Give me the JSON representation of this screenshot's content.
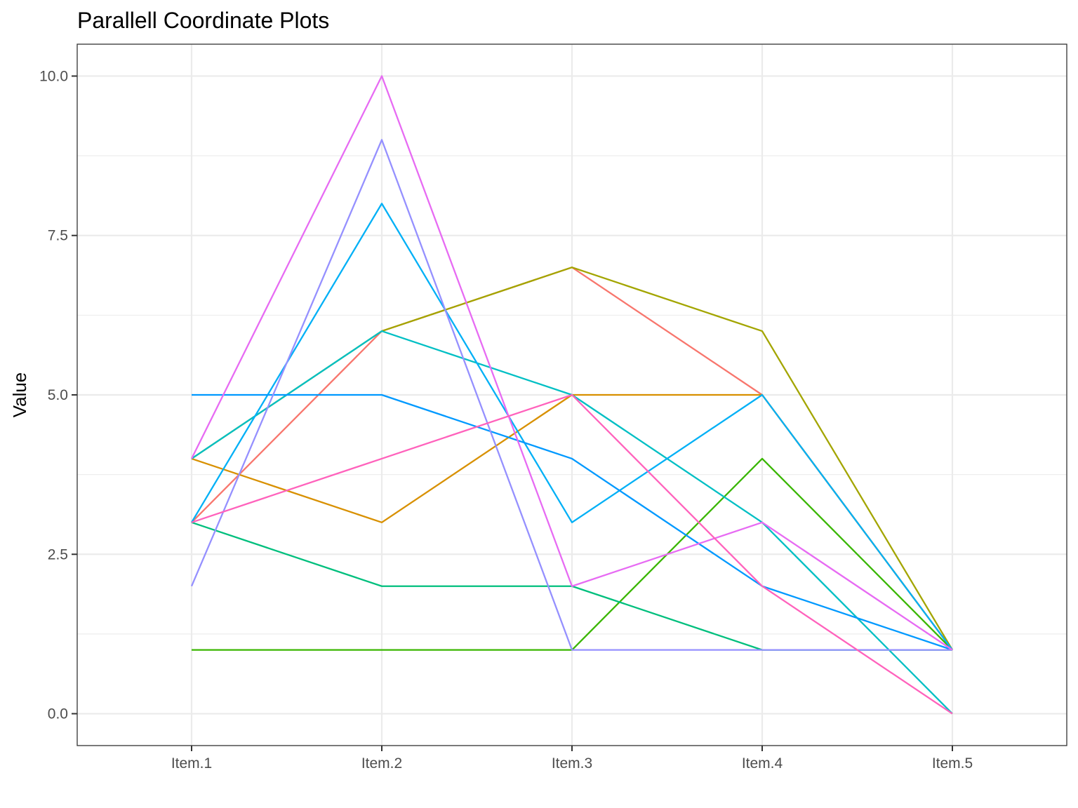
{
  "chart_data": {
    "type": "line",
    "title": "Parallell Coordinate Plots",
    "xlabel": "",
    "ylabel": "Value",
    "categories": [
      "Item.1",
      "Item.2",
      "Item.3",
      "Item.4",
      "Item.5"
    ],
    "ylim": [
      -0.5,
      10.5
    ],
    "y_major_ticks": [
      0,
      2.5,
      5,
      7.5,
      10
    ],
    "y_tick_labels": [
      "0.0",
      "2.5",
      "5.0",
      "7.5",
      "10.0"
    ],
    "y_minor_ticks": [
      1.25,
      3.75,
      6.25,
      8.75
    ],
    "grid": true,
    "legend": "none",
    "series": [
      {
        "color": "#F8766D",
        "values": [
          3,
          6,
          7,
          5,
          1
        ]
      },
      {
        "color": "#D89000",
        "values": [
          4,
          3,
          5,
          5,
          1
        ]
      },
      {
        "color": "#A3A500",
        "values": [
          4,
          6,
          7,
          6,
          1
        ]
      },
      {
        "color": "#39B600",
        "values": [
          1,
          1,
          1,
          4,
          1
        ]
      },
      {
        "color": "#00BF7D",
        "values": [
          3,
          2,
          2,
          1,
          1
        ]
      },
      {
        "color": "#00BFC4",
        "values": [
          4,
          6,
          5,
          3,
          0
        ]
      },
      {
        "color": "#00B0F6",
        "values": [
          3,
          8,
          3,
          5,
          1
        ]
      },
      {
        "color": "#0099FF",
        "values": [
          5,
          5,
          4,
          2,
          1
        ]
      },
      {
        "color": "#9590FF",
        "values": [
          2,
          9,
          1,
          1,
          1
        ]
      },
      {
        "color": "#E76BF3",
        "values": [
          4,
          10,
          2,
          3,
          1
        ]
      },
      {
        "color": "#FF62BC",
        "values": [
          3,
          4,
          5,
          2,
          0
        ]
      }
    ]
  }
}
